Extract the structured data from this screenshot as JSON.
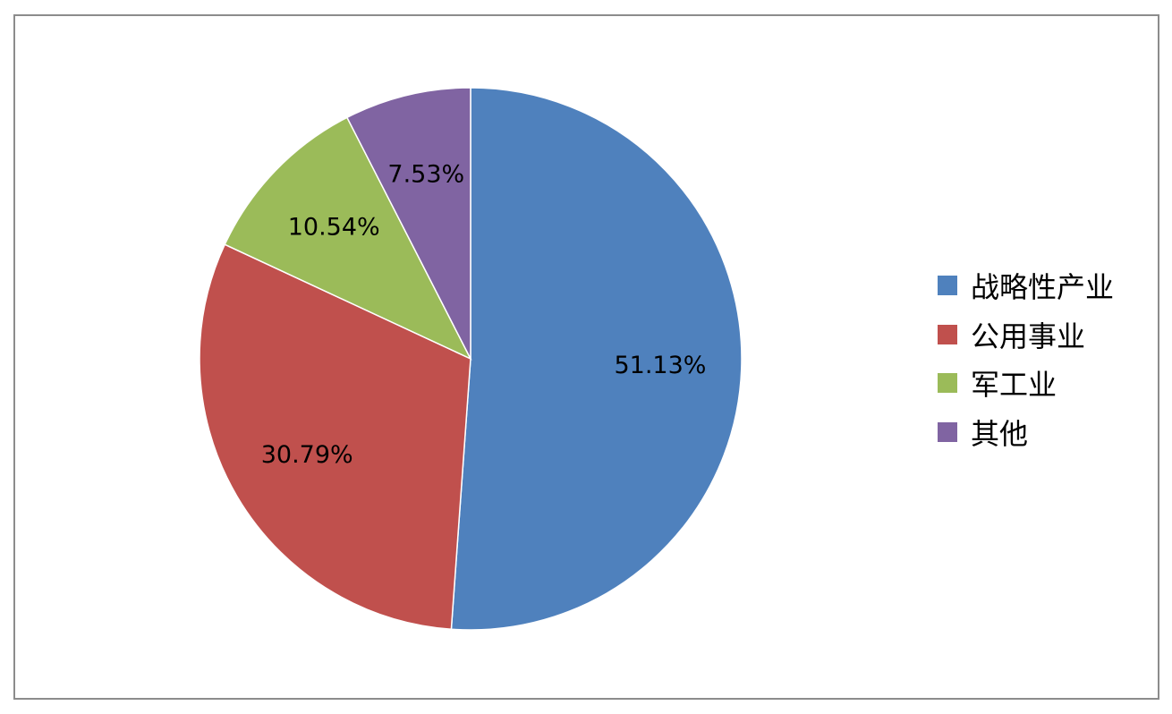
{
  "chart_data": {
    "type": "pie",
    "categories": [
      "战略性产业",
      "公用事业",
      "军工业",
      "其他"
    ],
    "values": [
      51.13,
      30.79,
      10.54,
      7.53
    ],
    "data_labels": [
      "51.13%",
      "30.79%",
      "10.54%",
      "7.53%"
    ],
    "colors": [
      "#4f81bd",
      "#c0504d",
      "#9bbb59",
      "#8064a2"
    ],
    "legend_position": "right",
    "start_angle": "12 o'clock",
    "direction": "clockwise"
  }
}
